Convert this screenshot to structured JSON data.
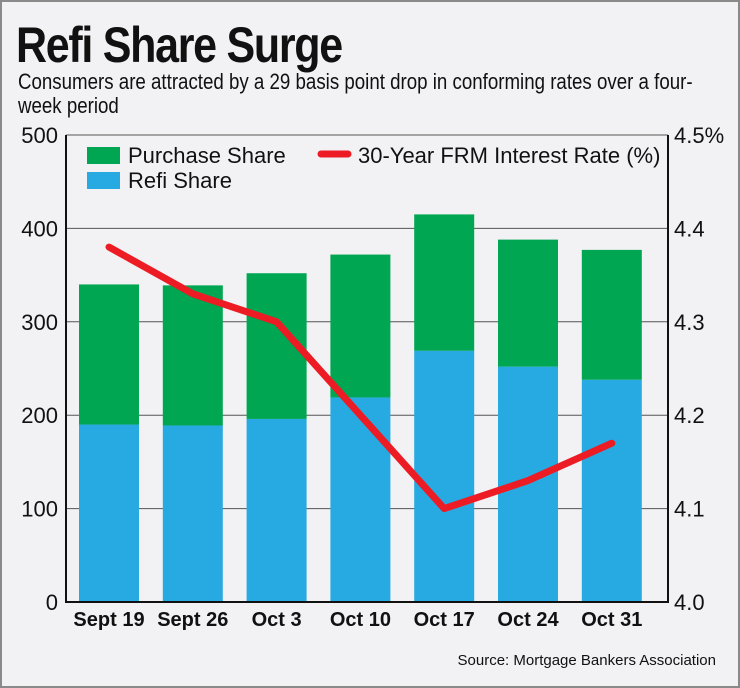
{
  "chart_data": {
    "type": "bar",
    "stacked": true,
    "title": "Refi Share Surge",
    "subtitle": "Consumers are attracted by a 29 basis point drop in conforming rates over a four-week period",
    "source": "Source: Mortgage Bankers Association",
    "categories": [
      "Sept 19",
      "Sept 26",
      "Oct 3",
      "Oct 10",
      "Oct 17",
      "Oct 24",
      "Oct 31"
    ],
    "series": [
      {
        "name": "Refi Share",
        "type": "bar",
        "axis": "left",
        "color": "#27a9e1",
        "values": [
          190,
          189,
          196,
          219,
          269,
          252,
          238
        ]
      },
      {
        "name": "Purchase Share",
        "type": "bar",
        "axis": "left",
        "color": "#00a651",
        "values": [
          150,
          150,
          156,
          153,
          146,
          136,
          139
        ]
      },
      {
        "name": "30-Year FRM Interest Rate (%)",
        "type": "line",
        "axis": "right",
        "color": "#ed1c24",
        "values": [
          4.38,
          4.33,
          4.3,
          4.2,
          4.1,
          4.13,
          4.17
        ]
      }
    ],
    "ylim": [
      0,
      500
    ],
    "yticks": [
      "0",
      "100",
      "200",
      "300",
      "400",
      "500"
    ],
    "y2lim": [
      4.0,
      4.5
    ],
    "y2ticks": [
      "4.0",
      "4.1",
      "4.2",
      "4.3",
      "4.4",
      "4.5%"
    ],
    "grid": true,
    "legend": "top"
  }
}
